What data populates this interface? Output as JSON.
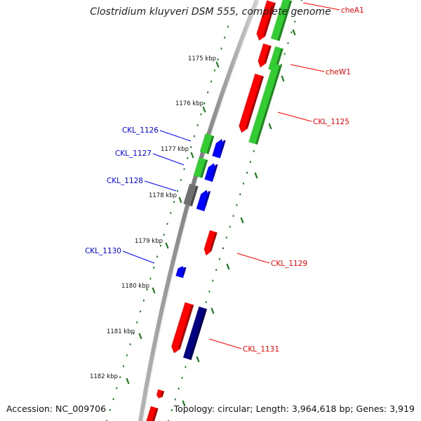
{
  "title": "Clostridium kluyveri DSM 555, complete genome",
  "footer": {
    "accession": "Accession: NC_009706",
    "summary": "Topology: circular; Length: 3,964,618 bp; Genes: 3,919"
  },
  "colors": {
    "forward_label": "#ff0000",
    "reverse_label": "#0000ff",
    "tick": "#1a7a1a",
    "backbone": "#8a8a8a",
    "red": "#ff0000",
    "green": "#33cc33",
    "blue": "#0000ff",
    "gray": "#707070",
    "navy": "#000080"
  },
  "ticks": [
    {
      "label": "1175 kbp"
    },
    {
      "label": "1176 kbp"
    },
    {
      "label": "1177 kbp"
    },
    {
      "label": "1178 kbp"
    },
    {
      "label": "1179 kbp"
    },
    {
      "label": "1180 kbp"
    },
    {
      "label": "1181 kbp"
    },
    {
      "label": "1182 kbp"
    }
  ],
  "gene_labels": [
    {
      "name": "cheA1",
      "strand": "forward"
    },
    {
      "name": "cheW1",
      "strand": "forward"
    },
    {
      "name": "CKL_1125",
      "strand": "forward"
    },
    {
      "name": "CKL_1126",
      "strand": "reverse"
    },
    {
      "name": "CKL_1127",
      "strand": "reverse"
    },
    {
      "name": "CKL_1128",
      "strand": "reverse"
    },
    {
      "name": "CKL_1130",
      "strand": "reverse"
    },
    {
      "name": "CKL_1129",
      "strand": "forward"
    },
    {
      "name": "CKL_1131",
      "strand": "forward"
    }
  ]
}
